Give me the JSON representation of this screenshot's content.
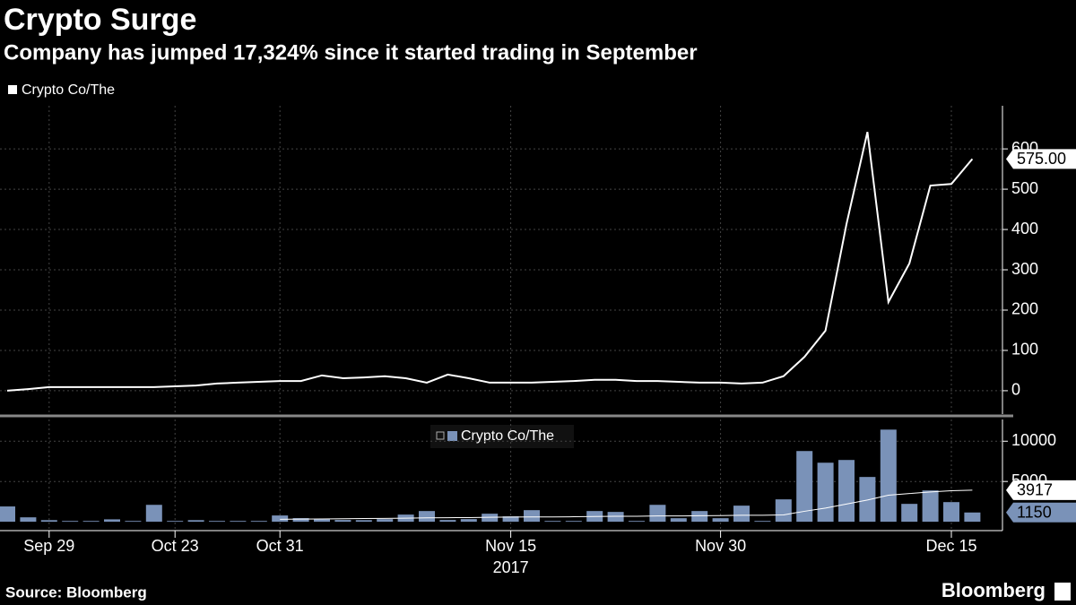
{
  "header": {
    "title": "Crypto Surge",
    "subtitle": "Company has jumped 17,324% since it started trading in September"
  },
  "footer": {
    "source": "Source: Bloomberg",
    "brand": "Bloomberg"
  },
  "chart_data": [
    {
      "type": "line",
      "categories": [
        null,
        null,
        "Sep 29",
        null,
        null,
        null,
        null,
        null,
        "Oct 23",
        null,
        null,
        null,
        null,
        "Oct 31",
        null,
        null,
        null,
        null,
        null,
        null,
        null,
        null,
        null,
        null,
        "Nov 15",
        null,
        null,
        null,
        null,
        null,
        null,
        null,
        null,
        null,
        "Nov 30",
        null,
        null,
        null,
        null,
        null,
        null,
        null,
        null,
        null,
        null,
        "Dec 15",
        null
      ],
      "year_label": "2017",
      "series": [
        {
          "name": "Crypto Co/The",
          "color": "#ffffff",
          "values": [
            0,
            4,
            9,
            9,
            9,
            9,
            9,
            9,
            11,
            13,
            18,
            20,
            22,
            24,
            24,
            38,
            31,
            33,
            36,
            31,
            20,
            40,
            31,
            20,
            20,
            20,
            22,
            24,
            27,
            27,
            24,
            24,
            22,
            20,
            20,
            18,
            20,
            36,
            84,
            149,
            413,
            642,
            220,
            316,
            509,
            513,
            575
          ],
          "value_labels": [
            null,
            null,
            null,
            null,
            null,
            null,
            null,
            null,
            null,
            null,
            null,
            null,
            null,
            null,
            null,
            null,
            null,
            null,
            null,
            null,
            null,
            null,
            null,
            null,
            null,
            null,
            null,
            null,
            null,
            null,
            null,
            null,
            null,
            null,
            null,
            null,
            null,
            null,
            null,
            null,
            null,
            null,
            null,
            null,
            null,
            null,
            "575.00"
          ]
        }
      ],
      "ylim": [
        -58,
        707
      ],
      "yticks": [
        0,
        100,
        200,
        300,
        400,
        500,
        600
      ],
      "grid": true
    },
    {
      "type": "bar",
      "series": [
        {
          "name": "Crypto Co/The",
          "color": "#7a92b8",
          "values": [
            1900,
            550,
            200,
            100,
            100,
            300,
            100,
            2100,
            100,
            200,
            100,
            100,
            100,
            780,
            450,
            330,
            220,
            200,
            330,
            890,
            1330,
            220,
            330,
            1000,
            670,
            1440,
            100,
            100,
            1330,
            1220,
            100,
            2100,
            440,
            1330,
            440,
            2000,
            100,
            2780,
            8780,
            7330,
            7670,
            5560,
            11440,
            2220,
            3890,
            2440,
            1150
          ]
        },
        {
          "type": "line",
          "color": "#ffffff",
          "values": [
            null,
            null,
            null,
            null,
            null,
            null,
            null,
            null,
            null,
            null,
            null,
            null,
            null,
            300,
            330,
            350,
            380,
            400,
            420,
            450,
            480,
            500,
            520,
            550,
            580,
            600,
            600,
            620,
            650,
            680,
            680,
            720,
            720,
            750,
            760,
            800,
            800,
            850,
            1300,
            1700,
            2200,
            2700,
            3300,
            3500,
            3700,
            3850,
            3917
          ]
        }
      ],
      "ylim": [
        -1100,
        12700
      ],
      "yticks": [
        5000,
        10000
      ],
      "grid": true
    }
  ]
}
